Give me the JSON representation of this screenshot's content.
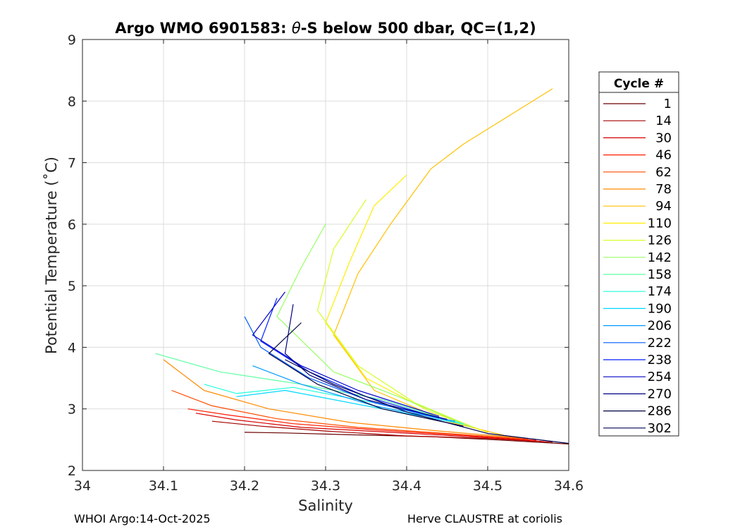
{
  "chart_data": {
    "type": "line",
    "title_prefix": "Argo WMO 6901583: ",
    "title_theta": "θ",
    "title_suffix": "-S below 500 dbar,  QC=(1,2)",
    "xlabel": "Salinity",
    "ylabel": "Potential Temperature (˚C)",
    "xlim": [
      34.0,
      34.6
    ],
    "ylim": [
      2,
      9
    ],
    "xticks": [
      34,
      34.1,
      34.2,
      34.3,
      34.4,
      34.5,
      34.6
    ],
    "xtick_labels": [
      "34",
      "34.1",
      "34.2",
      "34.3",
      "34.4",
      "34.5",
      "34.6"
    ],
    "yticks": [
      2,
      3,
      4,
      5,
      6,
      7,
      8,
      9
    ],
    "ytick_labels": [
      "2",
      "3",
      "4",
      "5",
      "6",
      "7",
      "8",
      "9"
    ],
    "grid": true,
    "legend_title": "Cycle #",
    "legend_position": "outside-right",
    "series": [
      {
        "name": "1",
        "color": "#6a0000",
        "points": [
          [
            34.6,
            2.43
          ],
          [
            34.52,
            2.49
          ],
          [
            34.43,
            2.55
          ],
          [
            34.33,
            2.58
          ],
          [
            34.25,
            2.61
          ],
          [
            34.2,
            2.62
          ]
        ]
      },
      {
        "name": "14",
        "color": "#a50000",
        "points": [
          [
            34.58,
            2.46
          ],
          [
            34.5,
            2.52
          ],
          [
            34.4,
            2.56
          ],
          [
            34.3,
            2.64
          ],
          [
            34.22,
            2.72
          ],
          [
            34.16,
            2.8
          ]
        ]
      },
      {
        "name": "30",
        "color": "#d70000",
        "points": [
          [
            34.57,
            2.47
          ],
          [
            34.49,
            2.54
          ],
          [
            34.38,
            2.62
          ],
          [
            34.27,
            2.7
          ],
          [
            34.19,
            2.82
          ],
          [
            34.14,
            2.93
          ]
        ]
      },
      {
        "name": "46",
        "color": "#ff1a00",
        "points": [
          [
            34.56,
            2.49
          ],
          [
            34.47,
            2.57
          ],
          [
            34.36,
            2.66
          ],
          [
            34.26,
            2.76
          ],
          [
            34.18,
            2.9
          ],
          [
            34.13,
            3.0
          ]
        ]
      },
      {
        "name": "62",
        "color": "#ff4c00",
        "points": [
          [
            34.55,
            2.51
          ],
          [
            34.45,
            2.6
          ],
          [
            34.34,
            2.7
          ],
          [
            34.24,
            2.84
          ],
          [
            34.16,
            3.05
          ],
          [
            34.11,
            3.3
          ]
        ]
      },
      {
        "name": "78",
        "color": "#ff8a00",
        "points": [
          [
            34.54,
            2.53
          ],
          [
            34.44,
            2.64
          ],
          [
            34.33,
            2.78
          ],
          [
            34.23,
            3.0
          ],
          [
            34.15,
            3.3
          ],
          [
            34.1,
            3.8
          ]
        ]
      },
      {
        "name": "94",
        "color": "#ffc000",
        "points": [
          [
            34.52,
            2.57
          ],
          [
            34.45,
            2.8
          ],
          [
            34.36,
            3.3
          ],
          [
            34.31,
            4.2
          ],
          [
            34.34,
            5.2
          ],
          [
            34.38,
            6.0
          ],
          [
            34.43,
            6.9
          ],
          [
            34.47,
            7.3
          ],
          [
            34.58,
            8.2
          ]
        ]
      },
      {
        "name": "110",
        "color": "#ffee00",
        "points": [
          [
            34.5,
            2.62
          ],
          [
            34.43,
            2.95
          ],
          [
            34.35,
            3.5
          ],
          [
            34.3,
            4.4
          ],
          [
            34.33,
            5.4
          ],
          [
            34.36,
            6.3
          ],
          [
            34.4,
            6.8
          ]
        ]
      },
      {
        "name": "126",
        "color": "#d4ff2a",
        "points": [
          [
            34.49,
            2.66
          ],
          [
            34.41,
            3.1
          ],
          [
            34.34,
            3.7
          ],
          [
            34.29,
            4.6
          ],
          [
            34.31,
            5.6
          ],
          [
            34.35,
            6.4
          ]
        ]
      },
      {
        "name": "142",
        "color": "#98ff66",
        "points": [
          [
            34.48,
            2.7
          ],
          [
            34.39,
            3.2
          ],
          [
            34.31,
            3.6
          ],
          [
            34.24,
            4.5
          ],
          [
            34.27,
            5.3
          ],
          [
            34.3,
            6.0
          ]
        ]
      },
      {
        "name": "158",
        "color": "#5dffa2",
        "points": [
          [
            34.47,
            2.74
          ],
          [
            34.37,
            3.15
          ],
          [
            34.27,
            3.4
          ],
          [
            34.17,
            3.6
          ],
          [
            34.09,
            3.9
          ]
        ]
      },
      {
        "name": "174",
        "color": "#20ffdd",
        "points": [
          [
            34.47,
            2.76
          ],
          [
            34.36,
            3.1
          ],
          [
            34.26,
            3.35
          ],
          [
            34.19,
            3.25
          ],
          [
            34.15,
            3.4
          ]
        ]
      },
      {
        "name": "190",
        "color": "#00d8ff",
        "points": [
          [
            34.46,
            2.78
          ],
          [
            34.35,
            3.05
          ],
          [
            34.25,
            3.3
          ],
          [
            34.19,
            3.2
          ]
        ]
      },
      {
        "name": "206",
        "color": "#009aff",
        "points": [
          [
            34.46,
            2.8
          ],
          [
            34.36,
            3.05
          ],
          [
            34.27,
            3.4
          ],
          [
            34.21,
            3.7
          ]
        ]
      },
      {
        "name": "222",
        "color": "#005dff",
        "points": [
          [
            34.45,
            2.82
          ],
          [
            34.36,
            3.1
          ],
          [
            34.28,
            3.5
          ],
          [
            34.22,
            4.0
          ],
          [
            34.2,
            4.5
          ]
        ]
      },
      {
        "name": "238",
        "color": "#001eff",
        "points": [
          [
            34.44,
            2.85
          ],
          [
            34.35,
            3.2
          ],
          [
            34.28,
            3.6
          ],
          [
            34.22,
            4.1
          ],
          [
            34.24,
            4.8
          ]
        ]
      },
      {
        "name": "254",
        "color": "#0000c8",
        "points": [
          [
            34.44,
            2.88
          ],
          [
            34.34,
            3.3
          ],
          [
            34.27,
            3.7
          ],
          [
            34.21,
            4.2
          ],
          [
            34.25,
            4.9
          ]
        ]
      },
      {
        "name": "270",
        "color": "#000082",
        "points": [
          [
            34.45,
            2.83
          ],
          [
            34.35,
            3.15
          ],
          [
            34.28,
            3.55
          ],
          [
            34.25,
            3.9
          ],
          [
            34.26,
            4.7
          ]
        ]
      },
      {
        "name": "286",
        "color": "#000041",
        "points": [
          [
            34.47,
            2.72
          ],
          [
            34.37,
            3.0
          ],
          [
            34.29,
            3.4
          ],
          [
            34.23,
            3.9
          ],
          [
            34.27,
            4.4
          ]
        ]
      },
      {
        "name": "302",
        "color": "#000050",
        "points": [
          [
            34.6,
            2.44
          ],
          [
            34.5,
            2.6
          ],
          [
            34.4,
            2.95
          ],
          [
            34.31,
            3.4
          ],
          [
            34.25,
            3.8
          ]
        ]
      }
    ]
  },
  "footer": {
    "left": "WHOI Argo:14-Oct-2025",
    "right": "Herve CLAUSTRE at coriolis"
  }
}
